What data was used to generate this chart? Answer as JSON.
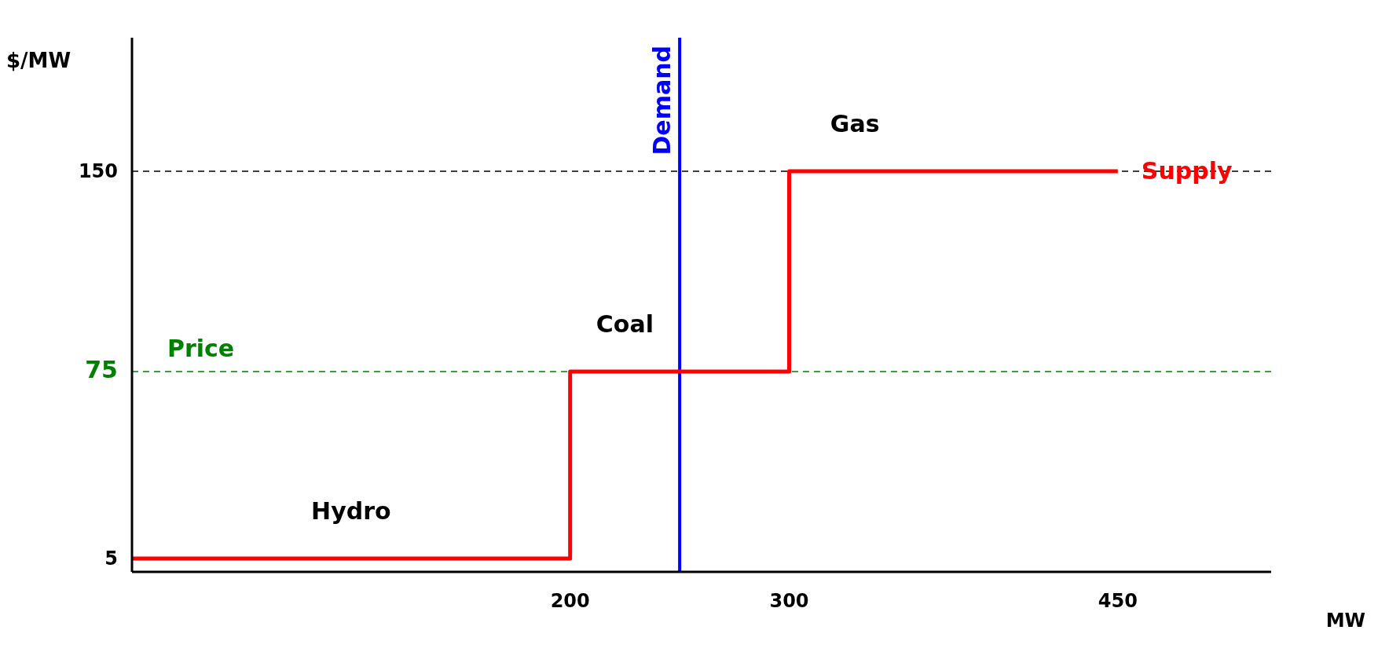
{
  "chart_data": {
    "type": "step",
    "xlabel": "MW",
    "ylabel": "$/MW",
    "x": [
      0,
      200,
      300,
      450
    ],
    "series": [
      {
        "name": "Supply",
        "color": "#ff0000",
        "values": [
          5,
          75,
          150,
          150
        ]
      }
    ],
    "xlim": [
      0,
      520
    ],
    "ylim": [
      0,
      200
    ],
    "xticks": [
      200,
      300,
      450
    ],
    "yticks": [
      5,
      75,
      150
    ],
    "ref_lines": [
      {
        "axis": "x",
        "value": 250,
        "label": "Demand",
        "color": "#0000ff",
        "line_style": "solid"
      },
      {
        "axis": "y",
        "value": 75,
        "label": "Price",
        "color": "#008000",
        "line_style": "dashed"
      },
      {
        "axis": "y",
        "value": 150,
        "color": "#000000",
        "line_style": "dashed"
      }
    ],
    "annotations": [
      {
        "text": "Hydro",
        "x": 100,
        "y": 5
      },
      {
        "text": "Coal",
        "x": 225,
        "y": 75
      },
      {
        "text": "Gas",
        "x": 330,
        "y": 150
      }
    ],
    "marker": "none",
    "line_style": "solid"
  }
}
